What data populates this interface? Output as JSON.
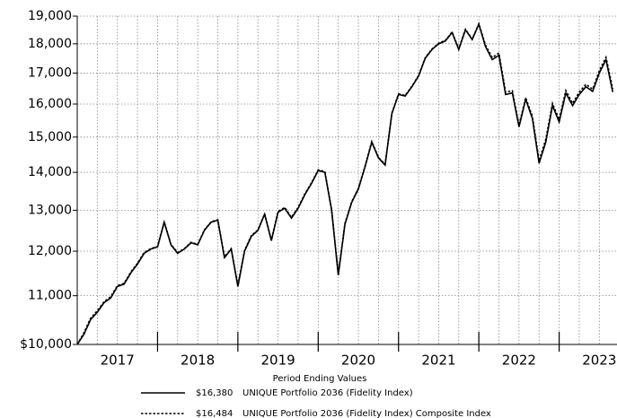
{
  "chart_data": {
    "type": "line",
    "log_scale": true,
    "grid": true,
    "x_axis_label": "Period Ending Values",
    "year_labels": [
      "2017",
      "2018",
      "2019",
      "2020",
      "2021",
      "2022",
      "2023"
    ],
    "xlim": [
      2017,
      2023.72
    ],
    "xticks": [
      2017.25,
      2017.5,
      2017.75,
      2018,
      2018.25,
      2018.5,
      2018.75,
      2019,
      2019.25,
      2019.5,
      2019.75,
      2020,
      2020.25,
      2020.5,
      2020.75,
      2021,
      2021.25,
      2021.5,
      2021.75,
      2022,
      2022.25,
      2022.5,
      2022.75,
      2023,
      2023.25,
      2023.5
    ],
    "year_ticks": [
      2018,
      2019,
      2020,
      2021,
      2022,
      2023
    ],
    "ylim": [
      10000,
      19000
    ],
    "yticks": [
      {
        "value": 10000,
        "label": "$10,000"
      },
      {
        "value": 11000,
        "label": "11,000"
      },
      {
        "value": 12000,
        "label": "12,000"
      },
      {
        "value": 13000,
        "label": "13,000"
      },
      {
        "value": 14000,
        "label": "14,000"
      },
      {
        "value": 15000,
        "label": "15,000"
      },
      {
        "value": 16000,
        "label": "16,000"
      },
      {
        "value": 17000,
        "label": "17,000"
      },
      {
        "value": 18000,
        "label": "18,000"
      },
      {
        "value": 19000,
        "label": "19,000"
      }
    ],
    "x": [
      2017.0,
      2017.083,
      2017.167,
      2017.25,
      2017.333,
      2017.417,
      2017.5,
      2017.583,
      2017.667,
      2017.75,
      2017.833,
      2017.917,
      2018.0,
      2018.083,
      2018.167,
      2018.25,
      2018.333,
      2018.417,
      2018.5,
      2018.583,
      2018.667,
      2018.75,
      2018.833,
      2018.917,
      2019.0,
      2019.083,
      2019.167,
      2019.25,
      2019.333,
      2019.417,
      2019.5,
      2019.583,
      2019.667,
      2019.75,
      2019.833,
      2019.917,
      2020.0,
      2020.083,
      2020.167,
      2020.25,
      2020.333,
      2020.417,
      2020.5,
      2020.583,
      2020.667,
      2020.75,
      2020.833,
      2020.917,
      2021.0,
      2021.083,
      2021.167,
      2021.25,
      2021.333,
      2021.417,
      2021.5,
      2021.583,
      2021.667,
      2021.75,
      2021.833,
      2021.917,
      2022.0,
      2022.083,
      2022.167,
      2022.25,
      2022.333,
      2022.417,
      2022.5,
      2022.583,
      2022.667,
      2022.75,
      2022.833,
      2022.917,
      2023.0,
      2023.083,
      2023.167,
      2023.25,
      2023.333,
      2023.417,
      2023.5,
      2023.583,
      2023.667
    ],
    "series": [
      {
        "name": "UNIQUE Portfolio 2036 (Fidelity Index)",
        "legend_value": "$16,380",
        "color": "#000000",
        "dash": "solid",
        "values": [
          10000,
          10200,
          10500,
          10650,
          10850,
          10950,
          11200,
          11250,
          11500,
          11700,
          11950,
          12050,
          12100,
          12700,
          12150,
          11950,
          12050,
          12200,
          12150,
          12500,
          12700,
          12750,
          11850,
          12050,
          11200,
          12000,
          12350,
          12500,
          12900,
          12250,
          12950,
          13050,
          12800,
          13050,
          13400,
          13700,
          14050,
          14000,
          13000,
          11450,
          12650,
          13200,
          13550,
          14150,
          14850,
          14400,
          14200,
          15700,
          16300,
          16250,
          16550,
          16900,
          17500,
          17800,
          18000,
          18100,
          18400,
          17800,
          18500,
          18150,
          18700,
          17900,
          17450,
          17600,
          16300,
          16350,
          15300,
          16150,
          15550,
          14250,
          14850,
          15950,
          15450,
          16350,
          15950,
          16300,
          16550,
          16400,
          17000,
          17450,
          16380
        ]
      },
      {
        "name": "UNIQUE Portfolio 2036 (Fidelity Index) Composite Index",
        "legend_value": "$16,484",
        "color": "#000000",
        "dash": "dashed",
        "values": [
          10000,
          10230,
          10530,
          10680,
          10870,
          10980,
          11220,
          11270,
          11520,
          11720,
          11970,
          12060,
          12110,
          12710,
          12160,
          11970,
          12060,
          12210,
          12160,
          12510,
          12710,
          12760,
          11870,
          12060,
          11220,
          12020,
          12370,
          12510,
          12910,
          12270,
          12970,
          13070,
          12820,
          13070,
          13420,
          13720,
          14070,
          14020,
          13020,
          11480,
          12670,
          13220,
          13570,
          14170,
          14870,
          14420,
          14220,
          15720,
          16320,
          16270,
          16570,
          16920,
          17520,
          17820,
          18020,
          18120,
          18420,
          17820,
          18520,
          18170,
          18720,
          17950,
          17520,
          17680,
          16380,
          16420,
          15350,
          16200,
          15620,
          14320,
          14930,
          16020,
          15520,
          16430,
          16020,
          16380,
          16630,
          16470,
          17080,
          17530,
          16484
        ]
      }
    ]
  }
}
